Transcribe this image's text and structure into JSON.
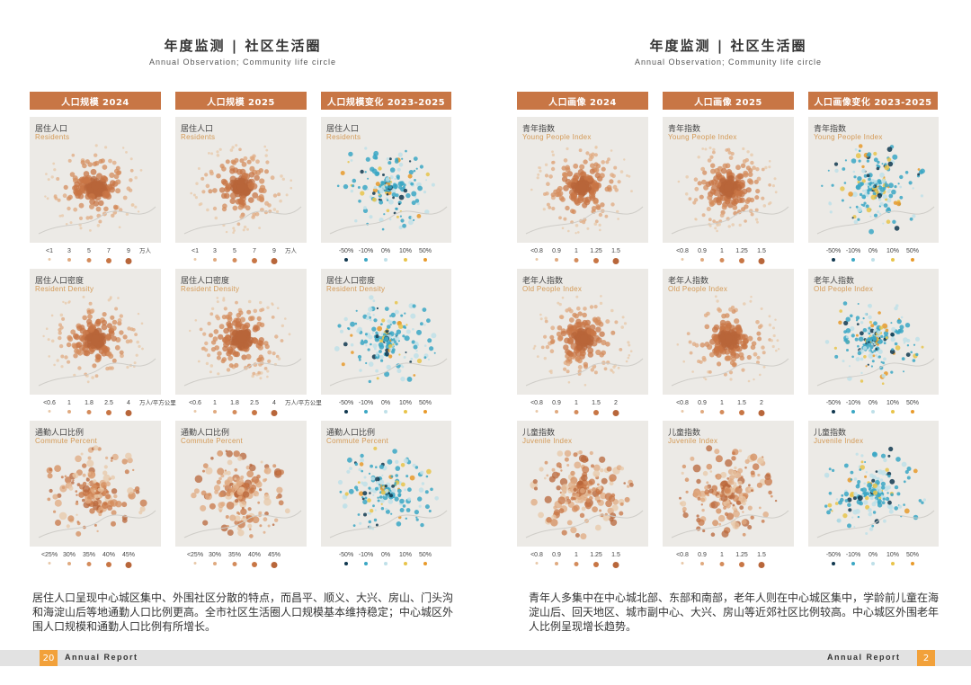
{
  "left": {
    "title_cn": "年度监测 | 社区生活圈",
    "title_en": "Annual Observation; Community life circle",
    "columns": [
      "人口规模 2024",
      "人口规模 2025",
      "人口规模变化 2023-2025"
    ],
    "rows": [
      {
        "cn": "居住人口",
        "en": "Residents",
        "legend_abs": [
          "<1",
          "3",
          "5",
          "7",
          "9"
        ],
        "unit": "万人"
      },
      {
        "cn": "居住人口密度",
        "en": "Resident Density",
        "legend_abs": [
          "<0.6",
          "1",
          "1.8",
          "2.5",
          "4"
        ],
        "unit": "万人/平方公里"
      },
      {
        "cn": "通勤人口比例",
        "en": "Commute Percent",
        "legend_abs": [
          "<25%",
          "30%",
          "35%",
          "40%",
          "45%"
        ],
        "unit": ""
      }
    ],
    "legend_change": [
      "-50%",
      "-10%",
      "0%",
      "10%",
      "50%"
    ],
    "paragraph": "居住人口呈现中心城区集中、外围社区分散的特点，而昌平、顺义、大兴、房山、门头沟和海淀山后等地通勤人口比例更高。全市社区生活圈人口规模基本维持稳定；中心城区外围人口规模和通勤人口比例有所增长。",
    "page_number": "20",
    "footer_label": "Annual Report"
  },
  "right": {
    "title_cn": "年度监测 | 社区生活圈",
    "title_en": "Annual Observation; Community life circle",
    "columns": [
      "人口画像 2024",
      "人口画像 2025",
      "人口画像变化 2023-2025"
    ],
    "rows": [
      {
        "cn": "青年指数",
        "en": "Young People Index",
        "legend_abs": [
          "<0.8",
          "0.9",
          "1",
          "1.25",
          "1.5"
        ],
        "unit": ""
      },
      {
        "cn": "老年人指数",
        "en": "Old People Index",
        "legend_abs": [
          "<0.8",
          "0.9",
          "1",
          "1.5",
          "2"
        ],
        "unit": ""
      },
      {
        "cn": "儿童指数",
        "en": "Juvenile Index",
        "legend_abs": [
          "<0.8",
          "0.9",
          "1",
          "1.25",
          "1.5"
        ],
        "unit": ""
      }
    ],
    "legend_change": [
      "-50%",
      "-10%",
      "0%",
      "10%",
      "50%"
    ],
    "paragraph": "青年人多集中在中心城北部、东部和南部，老年人则在中心城区集中，学龄前儿童在海淀山后、回天地区、城市副中心、大兴、房山等近郊社区比例较高。中心城区外围老年人比例呈现增长趋势。",
    "page_number": "2",
    "footer_label": "Annual Report"
  },
  "colors": {
    "header_bar": "#c87645",
    "dots_abs": "#d0834e",
    "dots_change": "#4fb3c9",
    "page_number_bg": "#f2a13a",
    "footer_bar": "#e2e2e2"
  }
}
